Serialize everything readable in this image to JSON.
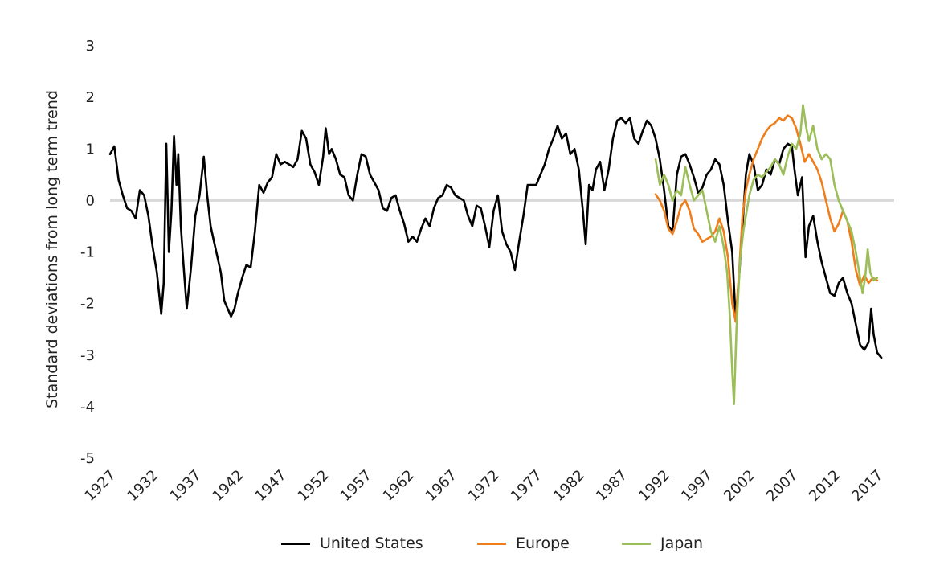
{
  "chart_data": {
    "type": "line",
    "ylabel": "Standard deviations from long term trend",
    "xlabel": "",
    "ylim": [
      -5,
      3
    ],
    "xlim": [
      1927,
      2019
    ],
    "yticks": [
      "3",
      "2",
      "1",
      "0",
      "-1",
      "-2",
      "-3",
      "-4",
      "-5"
    ],
    "xticks": [
      "1927",
      "1932",
      "1937",
      "1942",
      "1947",
      "1952",
      "1957",
      "1962",
      "1967",
      "1972",
      "1977",
      "1982",
      "1987",
      "1992",
      "1997",
      "2002",
      "2007",
      "2012",
      "2017"
    ],
    "zero_line": true,
    "legend_position": "bottom",
    "series": [
      {
        "name": "United States",
        "color": "#000000",
        "points": [
          [
            1927.0,
            0.9
          ],
          [
            1927.5,
            1.05
          ],
          [
            1928.0,
            0.4
          ],
          [
            1928.5,
            0.1
          ],
          [
            1929.0,
            -0.15
          ],
          [
            1929.5,
            -0.2
          ],
          [
            1930.0,
            -0.35
          ],
          [
            1930.5,
            0.2
          ],
          [
            1931.0,
            0.1
          ],
          [
            1931.5,
            -0.3
          ],
          [
            1932.0,
            -0.9
          ],
          [
            1932.5,
            -1.4
          ],
          [
            1933.0,
            -2.2
          ],
          [
            1933.3,
            -1.6
          ],
          [
            1933.6,
            1.1
          ],
          [
            1933.9,
            -1.0
          ],
          [
            1934.2,
            -0.2
          ],
          [
            1934.5,
            1.25
          ],
          [
            1934.8,
            0.3
          ],
          [
            1935.0,
            0.9
          ],
          [
            1935.3,
            -0.5
          ],
          [
            1935.6,
            -1.2
          ],
          [
            1936.0,
            -2.1
          ],
          [
            1936.5,
            -1.3
          ],
          [
            1937.0,
            -0.3
          ],
          [
            1937.5,
            0.1
          ],
          [
            1938.0,
            0.85
          ],
          [
            1938.4,
            0.1
          ],
          [
            1938.8,
            -0.5
          ],
          [
            1939.2,
            -0.8
          ],
          [
            1939.6,
            -1.1
          ],
          [
            1940.0,
            -1.4
          ],
          [
            1940.4,
            -1.95
          ],
          [
            1940.8,
            -2.1
          ],
          [
            1941.2,
            -2.25
          ],
          [
            1941.6,
            -2.1
          ],
          [
            1942.0,
            -1.8
          ],
          [
            1942.5,
            -1.5
          ],
          [
            1943.0,
            -1.25
          ],
          [
            1943.5,
            -1.3
          ],
          [
            1944.0,
            -0.6
          ],
          [
            1944.5,
            0.3
          ],
          [
            1945.0,
            0.15
          ],
          [
            1945.5,
            0.35
          ],
          [
            1946.0,
            0.45
          ],
          [
            1946.5,
            0.9
          ],
          [
            1947.0,
            0.7
          ],
          [
            1947.5,
            0.75
          ],
          [
            1948.0,
            0.7
          ],
          [
            1948.5,
            0.65
          ],
          [
            1949.0,
            0.8
          ],
          [
            1949.5,
            1.35
          ],
          [
            1950.0,
            1.2
          ],
          [
            1950.5,
            0.7
          ],
          [
            1951.0,
            0.55
          ],
          [
            1951.5,
            0.3
          ],
          [
            1952.0,
            0.85
          ],
          [
            1952.3,
            1.4
          ],
          [
            1952.7,
            0.9
          ],
          [
            1953.0,
            1.0
          ],
          [
            1953.5,
            0.8
          ],
          [
            1954.0,
            0.5
          ],
          [
            1954.5,
            0.45
          ],
          [
            1955.0,
            0.1
          ],
          [
            1955.5,
            0.0
          ],
          [
            1956.0,
            0.5
          ],
          [
            1956.5,
            0.9
          ],
          [
            1957.0,
            0.85
          ],
          [
            1957.5,
            0.5
          ],
          [
            1958.0,
            0.35
          ],
          [
            1958.5,
            0.2
          ],
          [
            1959.0,
            -0.15
          ],
          [
            1959.5,
            -0.2
          ],
          [
            1960.0,
            0.05
          ],
          [
            1960.5,
            0.1
          ],
          [
            1961.0,
            -0.2
          ],
          [
            1961.5,
            -0.45
          ],
          [
            1962.0,
            -0.8
          ],
          [
            1962.5,
            -0.7
          ],
          [
            1963.0,
            -0.8
          ],
          [
            1963.5,
            -0.55
          ],
          [
            1964.0,
            -0.35
          ],
          [
            1964.5,
            -0.5
          ],
          [
            1965.0,
            -0.15
          ],
          [
            1965.5,
            0.05
          ],
          [
            1966.0,
            0.1
          ],
          [
            1966.5,
            0.3
          ],
          [
            1967.0,
            0.25
          ],
          [
            1967.5,
            0.1
          ],
          [
            1968.0,
            0.05
          ],
          [
            1968.5,
            0.0
          ],
          [
            1969.0,
            -0.3
          ],
          [
            1969.5,
            -0.5
          ],
          [
            1970.0,
            -0.1
          ],
          [
            1970.5,
            -0.15
          ],
          [
            1971.0,
            -0.5
          ],
          [
            1971.5,
            -0.9
          ],
          [
            1972.0,
            -0.2
          ],
          [
            1972.5,
            0.1
          ],
          [
            1973.0,
            -0.6
          ],
          [
            1973.5,
            -0.85
          ],
          [
            1974.0,
            -1.0
          ],
          [
            1974.5,
            -1.35
          ],
          [
            1975.0,
            -0.8
          ],
          [
            1975.5,
            -0.3
          ],
          [
            1976.0,
            0.3
          ],
          [
            1976.5,
            0.3
          ],
          [
            1977.0,
            0.3
          ],
          [
            1977.5,
            0.5
          ],
          [
            1978.0,
            0.7
          ],
          [
            1978.5,
            1.0
          ],
          [
            1979.0,
            1.2
          ],
          [
            1979.5,
            1.45
          ],
          [
            1980.0,
            1.2
          ],
          [
            1980.5,
            1.3
          ],
          [
            1981.0,
            0.9
          ],
          [
            1981.5,
            1.0
          ],
          [
            1982.0,
            0.6
          ],
          [
            1982.5,
            -0.25
          ],
          [
            1982.8,
            -0.85
          ],
          [
            1983.2,
            0.3
          ],
          [
            1983.6,
            0.2
          ],
          [
            1984.0,
            0.6
          ],
          [
            1984.5,
            0.75
          ],
          [
            1985.0,
            0.2
          ],
          [
            1985.5,
            0.6
          ],
          [
            1986.0,
            1.2
          ],
          [
            1986.5,
            1.55
          ],
          [
            1987.0,
            1.6
          ],
          [
            1987.5,
            1.5
          ],
          [
            1988.0,
            1.6
          ],
          [
            1988.5,
            1.2
          ],
          [
            1989.0,
            1.1
          ],
          [
            1989.5,
            1.35
          ],
          [
            1990.0,
            1.55
          ],
          [
            1990.5,
            1.45
          ],
          [
            1991.0,
            1.2
          ],
          [
            1991.5,
            0.8
          ],
          [
            1992.0,
            0.2
          ],
          [
            1992.5,
            -0.5
          ],
          [
            1993.0,
            -0.6
          ],
          [
            1993.5,
            0.5
          ],
          [
            1994.0,
            0.85
          ],
          [
            1994.5,
            0.9
          ],
          [
            1995.0,
            0.7
          ],
          [
            1995.5,
            0.45
          ],
          [
            1996.0,
            0.15
          ],
          [
            1996.5,
            0.25
          ],
          [
            1997.0,
            0.5
          ],
          [
            1997.5,
            0.6
          ],
          [
            1998.0,
            0.8
          ],
          [
            1998.5,
            0.7
          ],
          [
            1999.0,
            0.3
          ],
          [
            1999.5,
            -0.4
          ],
          [
            2000.0,
            -1.0
          ],
          [
            2000.4,
            -2.3
          ],
          [
            2000.8,
            -1.5
          ],
          [
            2001.2,
            -0.5
          ],
          [
            2001.6,
            0.5
          ],
          [
            2002.0,
            0.9
          ],
          [
            2002.5,
            0.7
          ],
          [
            2003.0,
            0.2
          ],
          [
            2003.5,
            0.3
          ],
          [
            2004.0,
            0.6
          ],
          [
            2004.5,
            0.5
          ],
          [
            2005.0,
            0.8
          ],
          [
            2005.5,
            0.7
          ],
          [
            2006.0,
            1.0
          ],
          [
            2006.5,
            1.1
          ],
          [
            2007.0,
            1.05
          ],
          [
            2007.3,
            0.6
          ],
          [
            2007.7,
            0.1
          ],
          [
            2008.2,
            0.45
          ],
          [
            2008.6,
            -1.1
          ],
          [
            2009.0,
            -0.5
          ],
          [
            2009.5,
            -0.3
          ],
          [
            2010.0,
            -0.8
          ],
          [
            2010.5,
            -1.2
          ],
          [
            2011.0,
            -1.5
          ],
          [
            2011.5,
            -1.8
          ],
          [
            2012.0,
            -1.85
          ],
          [
            2012.5,
            -1.6
          ],
          [
            2013.0,
            -1.5
          ],
          [
            2013.5,
            -1.8
          ],
          [
            2014.0,
            -2.0
          ],
          [
            2014.5,
            -2.4
          ],
          [
            2015.0,
            -2.8
          ],
          [
            2015.5,
            -2.9
          ],
          [
            2016.0,
            -2.75
          ],
          [
            2016.3,
            -2.1
          ],
          [
            2016.6,
            -2.6
          ],
          [
            2017.0,
            -2.95
          ],
          [
            2017.5,
            -3.05
          ]
        ]
      },
      {
        "name": "Europe",
        "color": "#ef7d1a",
        "points": [
          [
            1991.0,
            0.12
          ],
          [
            1991.5,
            0.0
          ],
          [
            1992.0,
            -0.2
          ],
          [
            1992.5,
            -0.55
          ],
          [
            1993.0,
            -0.65
          ],
          [
            1993.5,
            -0.4
          ],
          [
            1994.0,
            -0.1
          ],
          [
            1994.5,
            0.0
          ],
          [
            1995.0,
            -0.2
          ],
          [
            1995.5,
            -0.55
          ],
          [
            1996.0,
            -0.65
          ],
          [
            1996.5,
            -0.8
          ],
          [
            1997.0,
            -0.75
          ],
          [
            1997.5,
            -0.7
          ],
          [
            1998.0,
            -0.6
          ],
          [
            1998.5,
            -0.35
          ],
          [
            1999.0,
            -0.6
          ],
          [
            1999.5,
            -1.1
          ],
          [
            2000.0,
            -2.0
          ],
          [
            2000.4,
            -2.35
          ],
          [
            2000.8,
            -1.4
          ],
          [
            2001.2,
            -0.3
          ],
          [
            2001.6,
            0.2
          ],
          [
            2002.0,
            0.5
          ],
          [
            2002.5,
            0.8
          ],
          [
            2003.0,
            1.0
          ],
          [
            2003.5,
            1.2
          ],
          [
            2004.0,
            1.35
          ],
          [
            2004.5,
            1.45
          ],
          [
            2005.0,
            1.5
          ],
          [
            2005.5,
            1.6
          ],
          [
            2006.0,
            1.55
          ],
          [
            2006.5,
            1.65
          ],
          [
            2007.0,
            1.6
          ],
          [
            2007.5,
            1.4
          ],
          [
            2008.0,
            1.1
          ],
          [
            2008.5,
            0.75
          ],
          [
            2009.0,
            0.9
          ],
          [
            2009.5,
            0.75
          ],
          [
            2010.0,
            0.6
          ],
          [
            2010.5,
            0.35
          ],
          [
            2011.0,
            0.0
          ],
          [
            2011.5,
            -0.35
          ],
          [
            2012.0,
            -0.6
          ],
          [
            2012.5,
            -0.45
          ],
          [
            2013.0,
            -0.2
          ],
          [
            2013.5,
            -0.4
          ],
          [
            2014.0,
            -0.8
          ],
          [
            2014.5,
            -1.35
          ],
          [
            2015.0,
            -1.65
          ],
          [
            2015.5,
            -1.45
          ],
          [
            2016.0,
            -1.6
          ],
          [
            2016.5,
            -1.5
          ],
          [
            2017.0,
            -1.55
          ]
        ]
      },
      {
        "name": "Japan",
        "color": "#9bbe58",
        "points": [
          [
            1991.0,
            0.8
          ],
          [
            1991.5,
            0.3
          ],
          [
            1992.0,
            0.5
          ],
          [
            1992.5,
            0.3
          ],
          [
            1993.0,
            0.0
          ],
          [
            1993.5,
            0.2
          ],
          [
            1994.0,
            0.1
          ],
          [
            1994.5,
            0.65
          ],
          [
            1995.0,
            0.3
          ],
          [
            1995.5,
            0.0
          ],
          [
            1996.0,
            0.1
          ],
          [
            1996.5,
            0.2
          ],
          [
            1997.0,
            -0.2
          ],
          [
            1997.5,
            -0.6
          ],
          [
            1998.0,
            -0.8
          ],
          [
            1998.5,
            -0.5
          ],
          [
            1999.0,
            -0.9
          ],
          [
            1999.4,
            -1.4
          ],
          [
            1999.7,
            -2.2
          ],
          [
            2000.0,
            -3.3
          ],
          [
            2000.2,
            -3.95
          ],
          [
            2000.5,
            -2.5
          ],
          [
            2000.9,
            -1.2
          ],
          [
            2001.3,
            -0.6
          ],
          [
            2001.7,
            -0.2
          ],
          [
            2002.0,
            0.1
          ],
          [
            2002.5,
            0.4
          ],
          [
            2003.0,
            0.5
          ],
          [
            2003.5,
            0.45
          ],
          [
            2004.0,
            0.55
          ],
          [
            2004.5,
            0.65
          ],
          [
            2005.0,
            0.8
          ],
          [
            2005.5,
            0.7
          ],
          [
            2006.0,
            0.5
          ],
          [
            2006.5,
            0.85
          ],
          [
            2007.0,
            1.1
          ],
          [
            2007.5,
            1.0
          ],
          [
            2008.0,
            1.3
          ],
          [
            2008.3,
            1.85
          ],
          [
            2008.7,
            1.4
          ],
          [
            2009.0,
            1.15
          ],
          [
            2009.5,
            1.45
          ],
          [
            2010.0,
            1.0
          ],
          [
            2010.5,
            0.8
          ],
          [
            2011.0,
            0.9
          ],
          [
            2011.5,
            0.8
          ],
          [
            2012.0,
            0.3
          ],
          [
            2012.5,
            0.0
          ],
          [
            2013.0,
            -0.2
          ],
          [
            2013.5,
            -0.4
          ],
          [
            2014.0,
            -0.6
          ],
          [
            2014.5,
            -1.0
          ],
          [
            2015.0,
            -1.5
          ],
          [
            2015.3,
            -1.8
          ],
          [
            2015.6,
            -1.5
          ],
          [
            2015.9,
            -0.95
          ],
          [
            2016.2,
            -1.4
          ],
          [
            2016.6,
            -1.55
          ],
          [
            2017.0,
            -1.5
          ]
        ]
      }
    ]
  }
}
